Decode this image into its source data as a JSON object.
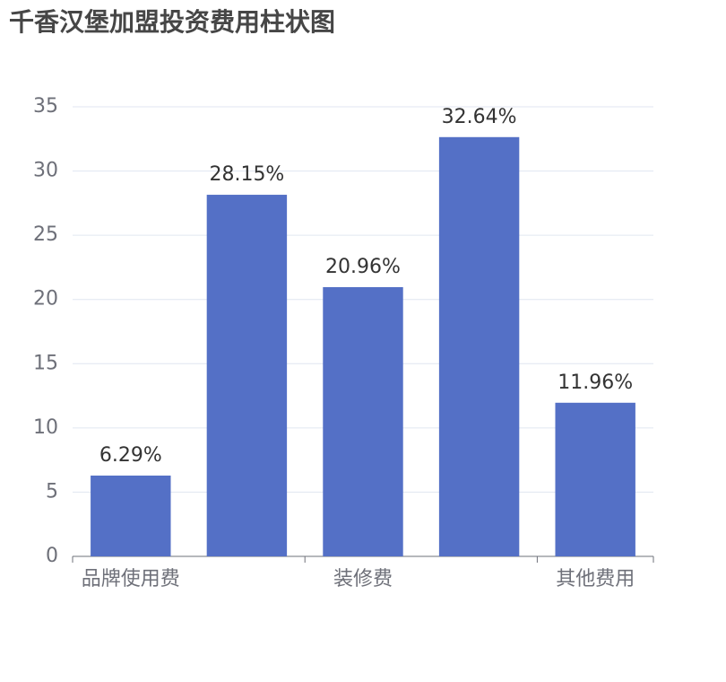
{
  "chart_data": {
    "type": "bar",
    "title": "千香汉堡加盟投资费用柱状图",
    "categories": [
      "品牌使用费",
      null,
      "装修费",
      null,
      "其他费用"
    ],
    "values": [
      6.29,
      28.15,
      20.96,
      32.64,
      11.96
    ],
    "value_labels": [
      "6.29%",
      "28.15%",
      "20.96%",
      "32.64%",
      "11.96%"
    ],
    "color": "#5470c6",
    "ylim": [
      0,
      35
    ],
    "yticks": [
      0,
      5,
      10,
      15,
      20,
      25,
      30,
      35
    ],
    "grid": true
  }
}
